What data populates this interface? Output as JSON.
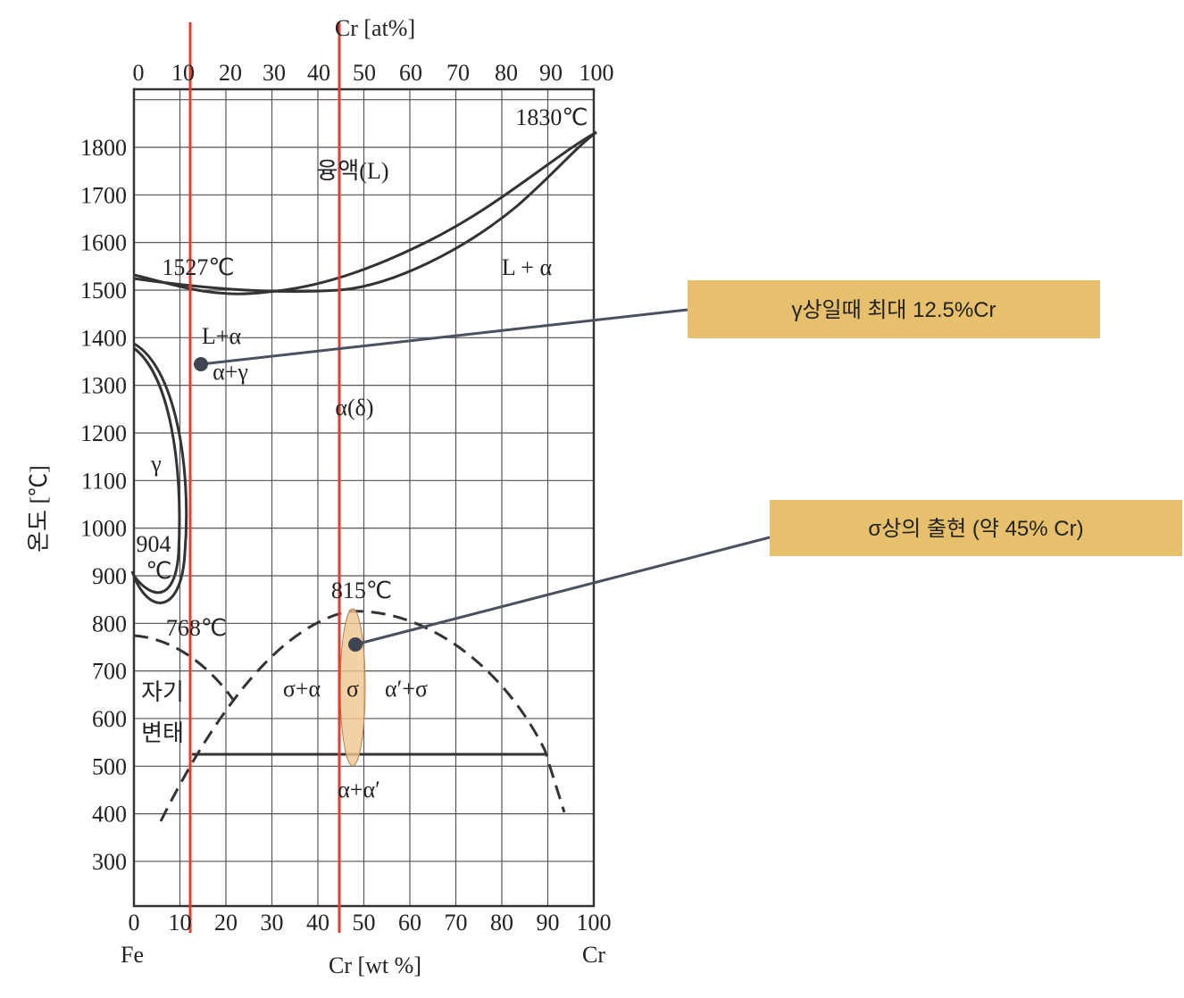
{
  "top_axis": {
    "label": "Cr [at%]",
    "ticks": [
      0,
      10,
      20,
      30,
      40,
      50,
      60,
      70,
      80,
      90,
      100
    ]
  },
  "bottom_axis": {
    "label": "Cr [wt %]",
    "ticks": [
      0,
      10,
      20,
      30,
      40,
      50,
      60,
      70,
      80,
      90,
      100
    ],
    "left_end": "Fe",
    "right_end": "Cr"
  },
  "left_axis": {
    "label": "온도 [℃]",
    "ticks": [
      1800,
      1700,
      1600,
      1500,
      1400,
      1300,
      1200,
      1100,
      1000,
      900,
      800,
      700,
      600,
      500,
      400,
      300
    ]
  },
  "regions": [
    "융액(L)",
    "L + α",
    "1830℃",
    "1527℃",
    "L+α",
    "α+γ",
    "α(δ)",
    "γ",
    "904",
    "℃",
    "815℃",
    "768℃",
    "자기",
    "변태",
    "σ+α",
    "σ",
    "α′+σ",
    "α+α′"
  ],
  "callouts": [
    "γ상일때 최대 12.5%Cr",
    "σ상의 출현 (약 45% Cr)"
  ]
}
